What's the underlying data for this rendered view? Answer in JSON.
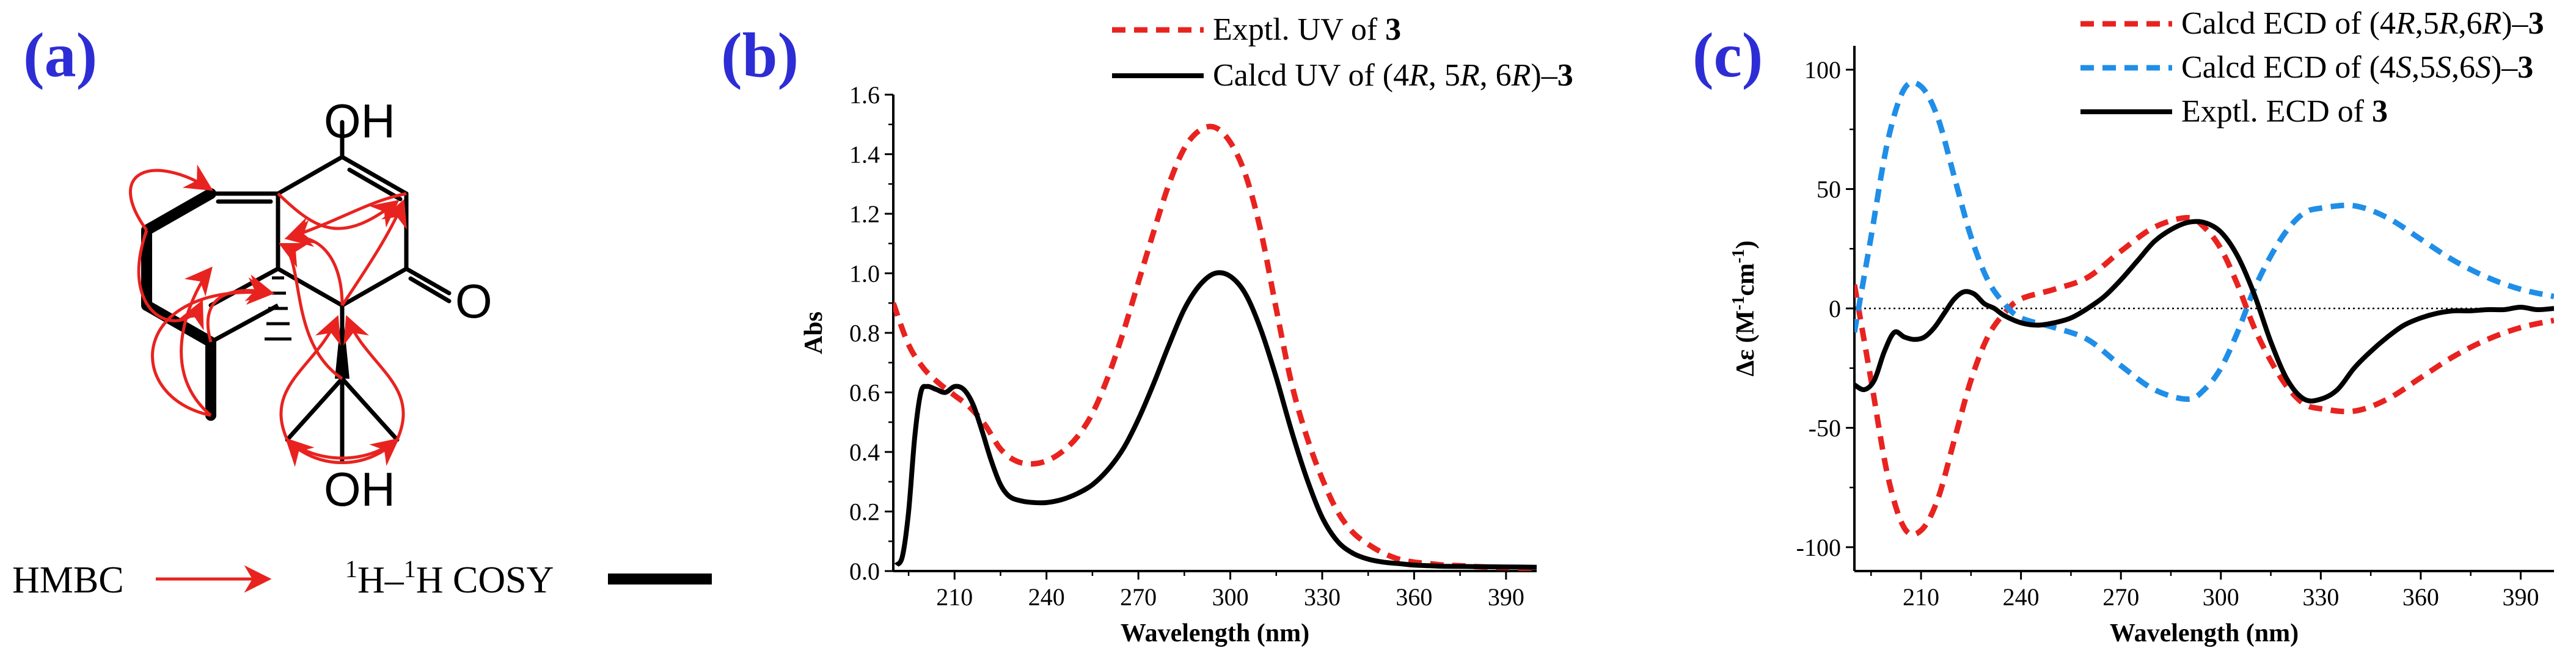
{
  "colors": {
    "red": "#e8231f",
    "blue": "#1f8ee8",
    "black": "#000000",
    "label": "#2d2dd6"
  },
  "panel_a": {
    "label": "(a)",
    "atoms": {
      "oh_top": "OH",
      "o_right": "O",
      "oh_bottom": "OH"
    },
    "legend": {
      "hmbc": "HMBC",
      "cosy_sup1": "1",
      "cosy_h1": "H–",
      "cosy_sup2": "1",
      "cosy_h2": "H COSY"
    }
  },
  "chart_data": [
    {
      "panel": "(b)",
      "type": "line",
      "xlabel": "Wavelength (nm)",
      "ylabel": "Abs",
      "xlim": [
        190,
        400
      ],
      "ylim": [
        0,
        1.6
      ],
      "xticks": [
        210,
        240,
        270,
        300,
        330,
        360,
        390
      ],
      "yticks": [
        0.0,
        0.2,
        0.4,
        0.6,
        0.8,
        1.0,
        1.2,
        1.4,
        1.6
      ],
      "ytick_labels": [
        "0.0",
        "0.2",
        "0.4",
        "0.6",
        "0.8",
        "1.0",
        "1.2",
        "1.4",
        "1.6"
      ],
      "legend": [
        {
          "prefix": "Exptl. UV of ",
          "bold": "3"
        },
        {
          "prefix": "Calcd UV of (4",
          "i1": "R",
          "m1": ", 5",
          "i2": "R",
          "m2": ", 6",
          "i3": "R",
          "suffix": ")–",
          "bold": "3"
        }
      ],
      "series": [
        {
          "name": "Exptl. UV of 3",
          "color": "red",
          "dash": true,
          "x": [
            190,
            195,
            200,
            205,
            210,
            215,
            220,
            225,
            230,
            235,
            240,
            245,
            250,
            255,
            260,
            265,
            270,
            275,
            280,
            285,
            290,
            295,
            300,
            305,
            310,
            315,
            320,
            325,
            330,
            335,
            340,
            345,
            350,
            355,
            360,
            365,
            370,
            375,
            380,
            385,
            390,
            395,
            400
          ],
          "y": [
            0.9,
            0.76,
            0.68,
            0.63,
            0.59,
            0.55,
            0.49,
            0.41,
            0.37,
            0.36,
            0.37,
            0.4,
            0.45,
            0.53,
            0.65,
            0.8,
            0.97,
            1.14,
            1.3,
            1.42,
            1.48,
            1.49,
            1.44,
            1.33,
            1.14,
            0.88,
            0.63,
            0.45,
            0.31,
            0.2,
            0.13,
            0.09,
            0.06,
            0.04,
            0.03,
            0.025,
            0.02,
            0.018,
            0.015,
            0.013,
            0.012,
            0.01,
            0.01
          ]
        },
        {
          "name": "Calcd UV of (4R, 5R, 6R)-3",
          "color": "black",
          "dash": false,
          "x": [
            191,
            193,
            195,
            197,
            199,
            201,
            204,
            207,
            210,
            213,
            216,
            219,
            222,
            225,
            228,
            232,
            236,
            240,
            245,
            250,
            255,
            260,
            265,
            270,
            275,
            280,
            285,
            290,
            295,
            300,
            305,
            310,
            315,
            320,
            325,
            330,
            335,
            340,
            345,
            350,
            355,
            360,
            365,
            370,
            380,
            390,
            400
          ],
          "y": [
            0.02,
            0.05,
            0.2,
            0.45,
            0.6,
            0.62,
            0.61,
            0.6,
            0.62,
            0.61,
            0.56,
            0.47,
            0.37,
            0.29,
            0.25,
            0.235,
            0.23,
            0.23,
            0.24,
            0.26,
            0.29,
            0.34,
            0.41,
            0.51,
            0.63,
            0.76,
            0.88,
            0.96,
            1.0,
            0.99,
            0.93,
            0.81,
            0.65,
            0.47,
            0.31,
            0.18,
            0.1,
            0.06,
            0.04,
            0.03,
            0.025,
            0.02,
            0.018,
            0.016,
            0.015,
            0.014,
            0.013
          ]
        }
      ]
    },
    {
      "panel": "(c)",
      "type": "line",
      "xlabel": "Wavelength (nm)",
      "ylabel": "Δε (M⁻¹cm⁻¹)",
      "ylabel_parts": {
        "a": "Δε (M",
        "sup1": "-1",
        "b": "cm",
        "sup2": "-1",
        "c": ")"
      },
      "xlim": [
        190,
        400
      ],
      "ylim": [
        -110,
        110
      ],
      "xticks": [
        210,
        240,
        270,
        300,
        330,
        360,
        390
      ],
      "yticks": [
        -100,
        -50,
        0,
        50,
        100
      ],
      "ytick_labels": [
        "-100",
        "-50",
        "0",
        "50",
        "100"
      ],
      "legend": [
        {
          "prefix": "Calcd ECD of (4",
          "i1": "R",
          "m1": ",5",
          "i2": "R",
          "m2": ",6",
          "i3": "R",
          "suffix": ")–",
          "bold": "3"
        },
        {
          "prefix": "Calcd ECD of (4",
          "i1": "S",
          "m1": ",5",
          "i2": "S",
          "m2": ",6",
          "i3": "S",
          "suffix": ")–",
          "bold": "3"
        },
        {
          "prefix": "Exptl. ECD of ",
          "bold": "3"
        }
      ],
      "series": [
        {
          "name": "Calcd ECD of (4R,5R,6R)-3",
          "color": "red",
          "dash": true,
          "x": [
            190,
            195,
            200,
            205,
            210,
            215,
            220,
            225,
            230,
            235,
            240,
            250,
            260,
            270,
            280,
            290,
            295,
            300,
            305,
            310,
            315,
            320,
            325,
            330,
            340,
            350,
            360,
            370,
            380,
            390,
            400
          ],
          "y": [
            10,
            -30,
            -70,
            -92,
            -93,
            -80,
            -55,
            -30,
            -12,
            -2,
            4,
            8,
            13,
            24,
            34,
            38,
            34,
            25,
            10,
            -8,
            -22,
            -33,
            -40,
            -42,
            -43,
            -38,
            -29,
            -20,
            -13,
            -8,
            -5
          ]
        },
        {
          "name": "Calcd ECD of (4S,5S,6S)-3",
          "color": "blue",
          "dash": true,
          "x": [
            190,
            195,
            200,
            205,
            210,
            215,
            220,
            225,
            230,
            235,
            240,
            250,
            260,
            270,
            280,
            290,
            295,
            300,
            305,
            310,
            315,
            320,
            325,
            330,
            340,
            350,
            360,
            370,
            380,
            390,
            400
          ],
          "y": [
            -10,
            30,
            70,
            92,
            93,
            80,
            55,
            30,
            12,
            2,
            -4,
            -8,
            -13,
            -24,
            -34,
            -38,
            -34,
            -25,
            -10,
            8,
            22,
            33,
            40,
            42,
            43,
            38,
            29,
            20,
            13,
            8,
            5
          ]
        },
        {
          "name": "Exptl. ECD of 3",
          "color": "black",
          "dash": false,
          "x": [
            190,
            193,
            196,
            199,
            202,
            205,
            208,
            211,
            214,
            217,
            220,
            223,
            226,
            229,
            232,
            235,
            240,
            245,
            250,
            255,
            260,
            265,
            270,
            275,
            280,
            285,
            290,
            295,
            300,
            305,
            310,
            315,
            320,
            325,
            330,
            335,
            340,
            345,
            350,
            355,
            360,
            365,
            370,
            375,
            380,
            385,
            390,
            395,
            400
          ],
          "y": [
            -32,
            -34,
            -30,
            -18,
            -10,
            -12,
            -13,
            -12,
            -8,
            -2,
            4,
            7,
            6,
            2,
            0,
            -3,
            -6,
            -7,
            -6,
            -4,
            0,
            5,
            12,
            20,
            28,
            33,
            36,
            36,
            32,
            22,
            6,
            -14,
            -30,
            -38,
            -38,
            -34,
            -25,
            -18,
            -12,
            -7,
            -4,
            -2,
            -1,
            -1,
            -0.5,
            -0.5,
            0.5,
            -0.5,
            0
          ]
        }
      ]
    }
  ]
}
